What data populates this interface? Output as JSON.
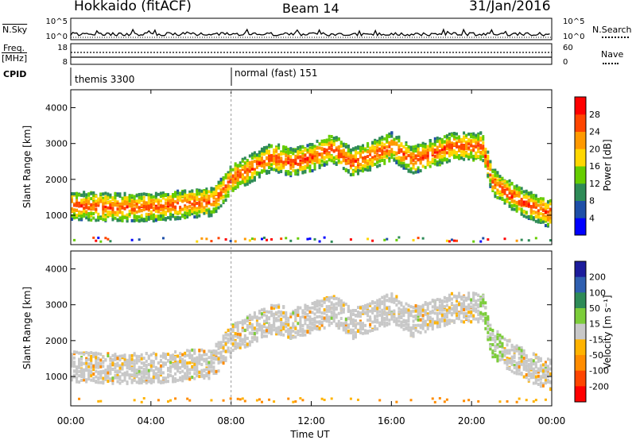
{
  "header": {
    "station": "Hokkaido (fitACF)",
    "beam": "Beam 14",
    "date": "31/Jan/2016"
  },
  "strips": {
    "nsky_label": "N.Sky",
    "nsky_ticks": [
      "10^5",
      "10^0"
    ],
    "nsearch_label": "N.Search",
    "nsearch_ticks": [
      "10^5",
      "10^0"
    ],
    "freq_label_line1": "Freq.",
    "freq_label_line2": "[MHz]",
    "freq_ticks": [
      "18",
      "8"
    ],
    "nave_label": "Nave",
    "nave_ticks": [
      "60",
      "0"
    ],
    "cpid_label": "CPID",
    "cpid_modes": [
      {
        "name": "themis 3300",
        "start_hour": 0
      },
      {
        "name": "normal (fast) 151",
        "start_hour": 8
      }
    ]
  },
  "chart_data": [
    {
      "type": "heatmap",
      "name": "power",
      "ylabel": "Slant Range [km]",
      "xlabel": "Time UT",
      "xticks": [
        "00:00",
        "04:00",
        "08:00",
        "12:00",
        "16:00",
        "20:00",
        "00:00"
      ],
      "xlim_hours": [
        0,
        24
      ],
      "ylim_km": [
        180,
        4500
      ],
      "yticks": [
        1000,
        2000,
        3000,
        4000
      ],
      "colorbar": {
        "label": "Power [dB]",
        "ticks": [
          "4",
          "8",
          "12",
          "16",
          "20",
          "24",
          "28"
        ],
        "colors": [
          "#0000ff",
          "#1e4fa8",
          "#2e8b57",
          "#66cd00",
          "#ffd700",
          "#ff9900",
          "#ff4500",
          "#ff0000"
        ]
      },
      "bands": [
        {
          "t": [
            0,
            2,
            4,
            6,
            7,
            7.5,
            8,
            9,
            10,
            11,
            12,
            13,
            14,
            15,
            16,
            17,
            18,
            19,
            20,
            20.5,
            21,
            22,
            23,
            24
          ],
          "r": [
            1250,
            1200,
            1200,
            1300,
            1350,
            1650,
            2000,
            2300,
            2600,
            2450,
            2600,
            2850,
            2450,
            2650,
            2900,
            2500,
            2700,
            2900,
            2900,
            2900,
            1900,
            1500,
            1200,
            1000
          ],
          "width": 350,
          "level": 0.9
        }
      ]
    },
    {
      "type": "heatmap",
      "name": "velocity",
      "ylabel": "Slant Range [km]",
      "ylim_km": [
        180,
        4500
      ],
      "yticks": [
        1000,
        2000,
        3000,
        4000
      ],
      "colorbar": {
        "label": "Velocity [m s⁻¹]",
        "ticks": [
          "200",
          "100",
          "50",
          "15",
          "-15",
          "-50",
          "-100",
          "-200"
        ],
        "colors": [
          "#1c1c9c",
          "#2f5fb0",
          "#2e8b57",
          "#7ccd3a",
          "#c8c8c8",
          "#ffb300",
          "#ff8c00",
          "#ff4500",
          "#ff0000"
        ]
      }
    }
  ]
}
